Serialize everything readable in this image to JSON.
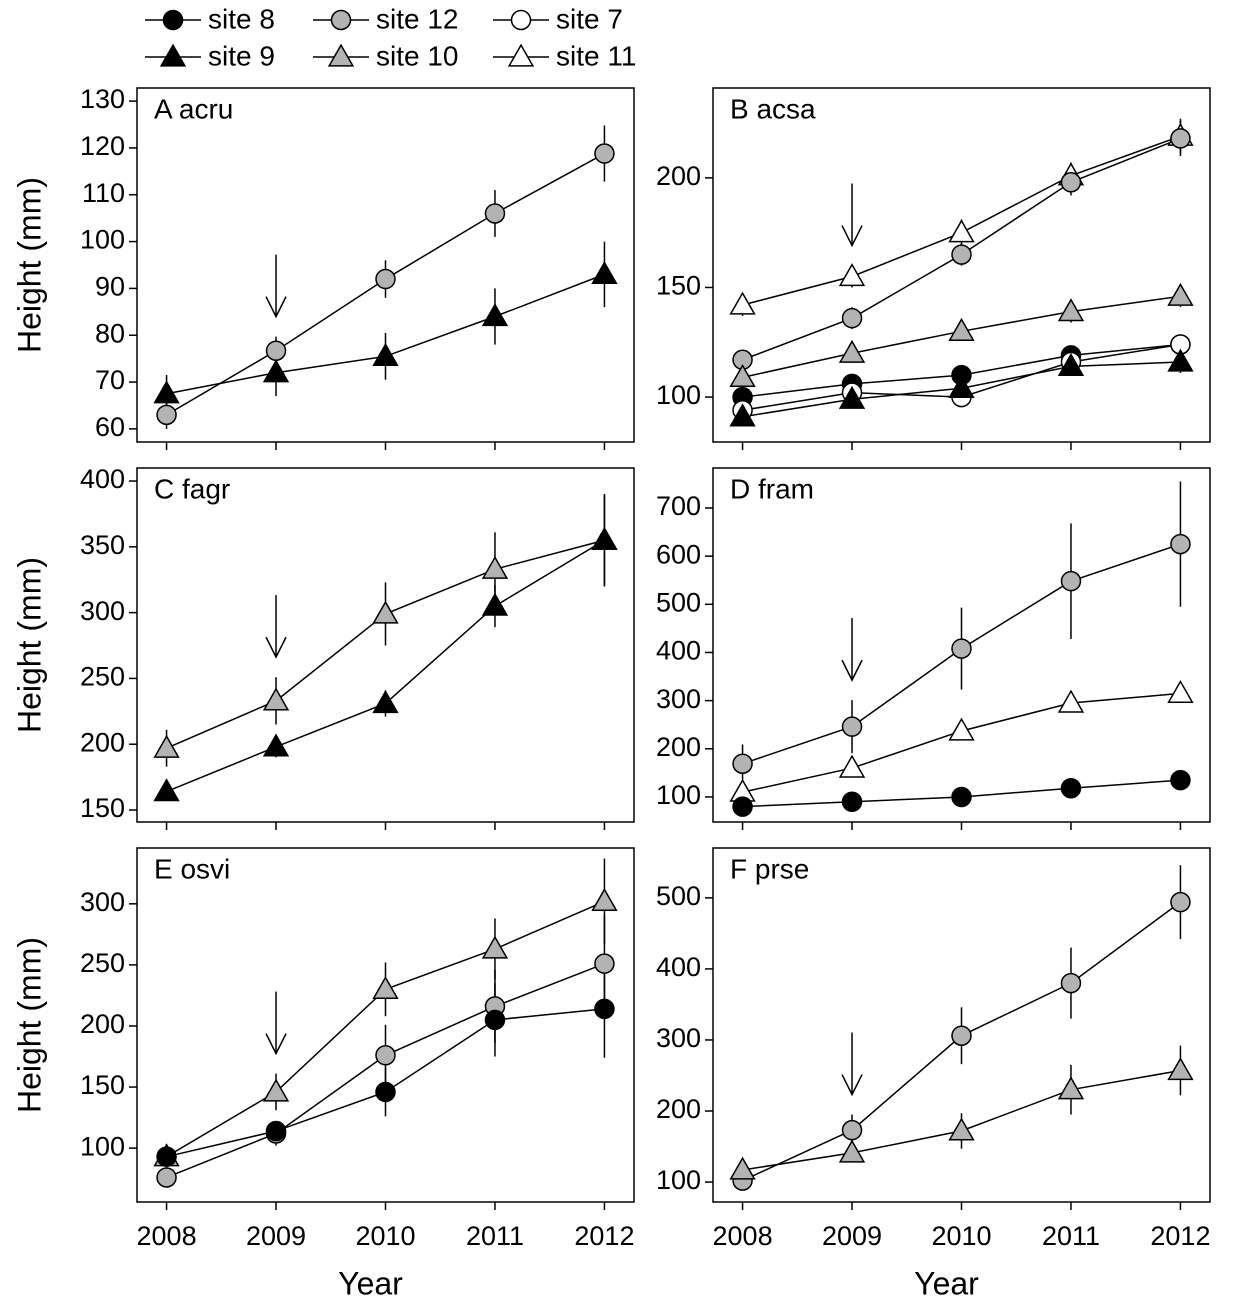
{
  "legend": [
    "site 8",
    "site 12",
    "site 7",
    "site 9",
    "site 10",
    "site 11"
  ],
  "chart_data": [
    {
      "type": "line",
      "title": "A acru",
      "ylabel": "Height (mm)",
      "x": [
        2008,
        2009,
        2010,
        2011,
        2012
      ],
      "xlim": [
        2007.73,
        2012.27
      ],
      "xticks": [
        2008,
        2009,
        2010,
        2011,
        2012
      ],
      "ylim": [
        57.2,
        132.8
      ],
      "yticks": [
        60,
        70,
        80,
        90,
        100,
        110,
        120,
        130
      ],
      "series": [
        {
          "name": "site 12",
          "marker": "circle",
          "color": "#b3b3b3",
          "values": [
            63,
            76.7,
            92,
            106,
            118.8
          ],
          "errors": [
            3,
            3,
            4,
            5,
            6
          ]
        },
        {
          "name": "site 9",
          "marker": "triangle",
          "color": "#000000",
          "values": [
            67.5,
            72,
            75.5,
            84,
            93
          ],
          "errors": [
            4,
            5,
            5,
            6,
            7
          ]
        }
      ]
    },
    {
      "type": "line",
      "title": "B acsa",
      "x": [
        2008,
        2009,
        2010,
        2011,
        2012
      ],
      "xlim": [
        2007.73,
        2012.27
      ],
      "xticks": [
        2008,
        2009,
        2010,
        2011,
        2012
      ],
      "ylim": [
        79.5,
        241
      ],
      "yticks": [
        100,
        150,
        200
      ],
      "series": [
        {
          "name": "site 11",
          "marker": "triangle",
          "color": "#ffffff",
          "values": [
            142,
            155,
            175,
            201,
            219
          ],
          "errors": [
            5,
            5,
            6,
            6,
            8
          ]
        },
        {
          "name": "site 12",
          "marker": "circle",
          "color": "#b3b3b3",
          "values": [
            117,
            136,
            165,
            198,
            218
          ],
          "errors": [
            4,
            5,
            5,
            6,
            8
          ]
        },
        {
          "name": "site 10",
          "marker": "triangle",
          "color": "#b3b3b3",
          "values": [
            109,
            120,
            130,
            139,
            146
          ],
          "errors": [
            4,
            4,
            4,
            5,
            5
          ]
        },
        {
          "name": "site 8",
          "marker": "circle",
          "color": "#000000",
          "values": [
            100,
            106,
            110,
            119,
            124
          ],
          "errors": [
            3,
            3,
            4,
            4,
            4
          ]
        },
        {
          "name": "site 7",
          "marker": "circle",
          "color": "#ffffff",
          "values": [
            94,
            102,
            100,
            116,
            124
          ],
          "errors": [
            3,
            3,
            3,
            3,
            4
          ]
        },
        {
          "name": "site 9",
          "marker": "triangle",
          "color": "#000000",
          "values": [
            91,
            99,
            104,
            114,
            116
          ],
          "errors": [
            3,
            3,
            4,
            4,
            5
          ]
        }
      ]
    },
    {
      "type": "line",
      "title": "C fagr",
      "ylabel": "Height (mm)",
      "x": [
        2008,
        2009,
        2010,
        2011,
        2012
      ],
      "xlim": [
        2007.73,
        2012.27
      ],
      "xticks": [
        2008,
        2009,
        2010,
        2011,
        2012
      ],
      "ylim": [
        140.9,
        409.9
      ],
      "yticks": [
        150,
        200,
        250,
        300,
        350,
        400
      ],
      "series": [
        {
          "name": "site 10",
          "marker": "triangle",
          "color": "#b3b3b3",
          "values": [
            197,
            233,
            299,
            333,
            355
          ],
          "errors": [
            14,
            18,
            24,
            28,
            35
          ]
        },
        {
          "name": "site 9",
          "marker": "triangle",
          "color": "#000000",
          "values": [
            164,
            198,
            231,
            305,
            355
          ],
          "errors": [
            6,
            8,
            10,
            16,
            35
          ]
        }
      ]
    },
    {
      "type": "line",
      "title": "D fram",
      "x": [
        2008,
        2009,
        2010,
        2011,
        2012
      ],
      "xlim": [
        2007.73,
        2012.27
      ],
      "xticks": [
        2008,
        2009,
        2010,
        2011,
        2012
      ],
      "ylim": [
        48,
        783
      ],
      "yticks": [
        100,
        200,
        300,
        400,
        500,
        600,
        700
      ],
      "series": [
        {
          "name": "site 12",
          "marker": "circle",
          "color": "#b3b3b3",
          "values": [
            169,
            246,
            408,
            548,
            625
          ],
          "errors": [
            40,
            55,
            85,
            120,
            130
          ]
        },
        {
          "name": "site 11",
          "marker": "triangle",
          "color": "#ffffff",
          "values": [
            110,
            160,
            237,
            295,
            315
          ],
          "errors": [
            10,
            15,
            15,
            15,
            20
          ]
        },
        {
          "name": "site 8",
          "marker": "circle",
          "color": "#000000",
          "values": [
            80,
            90,
            100,
            118,
            135
          ],
          "errors": [
            5,
            5,
            5,
            6,
            6
          ]
        }
      ]
    },
    {
      "type": "line",
      "title": "E osvi",
      "ylabel": "Height (mm)",
      "xlabel": "Year",
      "x": [
        2008,
        2009,
        2010,
        2011,
        2012
      ],
      "xlim": [
        2007.73,
        2012.27
      ],
      "xticks": [
        2008,
        2009,
        2010,
        2011,
        2012
      ],
      "ylim": [
        55.9,
        345.7
      ],
      "yticks": [
        100,
        150,
        200,
        250,
        300
      ],
      "series": [
        {
          "name": "site 10",
          "marker": "triangle",
          "color": "#b3b3b3",
          "values": [
            93,
            146,
            230,
            263,
            302
          ],
          "errors": [
            10,
            15,
            22,
            25,
            35
          ]
        },
        {
          "name": "site 12",
          "marker": "circle",
          "color": "#b3b3b3",
          "values": [
            76,
            112,
            176,
            216,
            251
          ],
          "errors": [
            5,
            10,
            25,
            30,
            40
          ]
        },
        {
          "name": "site 8",
          "marker": "circle",
          "color": "#000000",
          "values": [
            93,
            114,
            146,
            205,
            214
          ],
          "errors": [
            5,
            8,
            20,
            30,
            40
          ]
        }
      ]
    },
    {
      "type": "line",
      "title": "F prse",
      "xlabel": "Year",
      "x": [
        2008,
        2009,
        2010,
        2011,
        2012
      ],
      "xlim": [
        2007.73,
        2012.27
      ],
      "xticks": [
        2008,
        2009,
        2010,
        2011,
        2012
      ],
      "ylim": [
        71.9,
        570.2
      ],
      "yticks": [
        100,
        200,
        300,
        400,
        500
      ],
      "series": [
        {
          "name": "site 12",
          "marker": "circle",
          "color": "#b3b3b3",
          "values": [
            102,
            173,
            306,
            380,
            494
          ],
          "errors": [
            8,
            22,
            40,
            50,
            52
          ]
        },
        {
          "name": "site 10",
          "marker": "triangle",
          "color": "#b3b3b3",
          "values": [
            117,
            141,
            172,
            230,
            257
          ],
          "errors": [
            8,
            12,
            25,
            35,
            35
          ]
        }
      ]
    }
  ]
}
